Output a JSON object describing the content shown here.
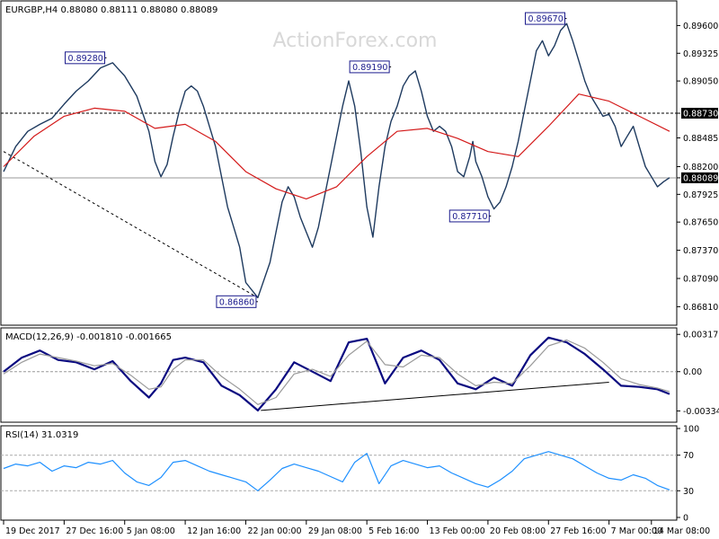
{
  "chart_data": [
    {
      "type": "line",
      "panel": "price",
      "title": "EURGBP,H4  0.88080 0.88111 0.88080 0.88089",
      "watermark": "ActionForex.com",
      "ylim": [
        0.8668,
        0.898
      ],
      "yticks": [
        "0.89600",
        "0.89325",
        "0.89050",
        "0.88730",
        "0.88485",
        "0.88200",
        "0.88089",
        "0.87925",
        "0.87650",
        "0.87370",
        "0.87090",
        "0.86810"
      ],
      "ytick_values": [
        0.896,
        0.89325,
        0.8905,
        0.8873,
        0.88485,
        0.882,
        0.88089,
        0.87925,
        0.8765,
        0.8737,
        0.8709,
        0.8681
      ],
      "highlighted_ticks": [
        "0.88730",
        "0.88089"
      ],
      "horizontal_lines": [
        {
          "value": 0.8873,
          "style": "dashed"
        },
        {
          "value": 0.88089,
          "style": "solid"
        }
      ],
      "series": [
        {
          "color": "#1e3a5f",
          "x": [
            0,
            4,
            8,
            12,
            16,
            20,
            24,
            28,
            32,
            36,
            40,
            44,
            48,
            50,
            52,
            54,
            56,
            58,
            60,
            62,
            64,
            66,
            68,
            70,
            72,
            74,
            76,
            78,
            80,
            84,
            88,
            90,
            92,
            94,
            96,
            98,
            100,
            102,
            104,
            106,
            108,
            110,
            112,
            114,
            116,
            118,
            120,
            122,
            124,
            126,
            128,
            130,
            132,
            134,
            136,
            138,
            140,
            142,
            144,
            146,
            148,
            150,
            152,
            154,
            155,
            156,
            158,
            160,
            162,
            164,
            166,
            168,
            170,
            172,
            174,
            176,
            178,
            180,
            182,
            184,
            186,
            188,
            190,
            192,
            194,
            196,
            198,
            200,
            202,
            204,
            206,
            208,
            210,
            212,
            214,
            216,
            218,
            220
          ],
          "values": [
            0.8815,
            0.884,
            0.8855,
            0.8862,
            0.8868,
            0.8882,
            0.8895,
            0.8905,
            0.8918,
            0.8923,
            0.891,
            0.889,
            0.8855,
            0.8825,
            0.881,
            0.8822,
            0.885,
            0.8875,
            0.8895,
            0.89,
            0.8895,
            0.888,
            0.886,
            0.884,
            0.881,
            0.878,
            0.876,
            0.874,
            0.8705,
            0.869,
            0.8725,
            0.8755,
            0.8785,
            0.88,
            0.879,
            0.877,
            0.8755,
            0.874,
            0.876,
            0.879,
            0.882,
            0.885,
            0.888,
            0.8905,
            0.888,
            0.8835,
            0.878,
            0.875,
            0.88,
            0.884,
            0.8865,
            0.888,
            0.89,
            0.891,
            0.8915,
            0.8895,
            0.887,
            0.8855,
            0.886,
            0.8855,
            0.884,
            0.8815,
            0.881,
            0.883,
            0.8845,
            0.8825,
            0.881,
            0.879,
            0.8778,
            0.8785,
            0.88,
            0.882,
            0.8845,
            0.8875,
            0.8905,
            0.8935,
            0.8945,
            0.893,
            0.894,
            0.8955,
            0.8962,
            0.8945,
            0.8925,
            0.8905,
            0.889,
            0.888,
            0.887,
            0.8872,
            0.886,
            0.884,
            0.885,
            0.886,
            0.884,
            0.882,
            0.881,
            0.88,
            0.8805,
            0.8809
          ]
        },
        {
          "color": "#d41a1a",
          "x": [
            0,
            10,
            20,
            30,
            40,
            50,
            60,
            70,
            80,
            90,
            100,
            110,
            120,
            130,
            140,
            150,
            160,
            170,
            180,
            190,
            200,
            210,
            220
          ],
          "values": [
            0.882,
            0.885,
            0.887,
            0.8878,
            0.8875,
            0.8858,
            0.8862,
            0.8845,
            0.8815,
            0.8798,
            0.8788,
            0.88,
            0.883,
            0.8855,
            0.8858,
            0.8848,
            0.8835,
            0.883,
            0.886,
            0.8892,
            0.8885,
            0.887,
            0.8855
          ]
        }
      ],
      "annotations": [
        {
          "text": "0.89280",
          "x": 34,
          "value": 0.8928
        },
        {
          "text": "0.86860",
          "x": 84,
          "value": 0.8686
        },
        {
          "text": "0.89190",
          "x": 128,
          "value": 0.8919
        },
        {
          "text": "0.87710",
          "x": 161,
          "value": 0.8771
        },
        {
          "text": "0.89670",
          "x": 186,
          "value": 0.8967
        }
      ],
      "trendline": {
        "style": "dashed",
        "from": {
          "x": 0,
          "value": 0.8835
        },
        "to": {
          "x": 84,
          "value": 0.869
        }
      }
    },
    {
      "type": "line",
      "panel": "macd",
      "title": "MACD(12,26,9) -0.001810 -0.001665",
      "ylim": [
        -0.004,
        0.0035
      ],
      "yticks": [
        "0.003177",
        "0.00",
        "-0.003344"
      ],
      "ytick_values": [
        0.003177,
        0.0,
        -0.003344
      ],
      "zero_line": "dashed",
      "series": [
        {
          "color": "#0a0a80",
          "x": [
            0,
            6,
            12,
            18,
            24,
            30,
            36,
            42,
            48,
            52,
            56,
            60,
            66,
            72,
            78,
            84,
            90,
            96,
            102,
            108,
            114,
            120,
            126,
            132,
            138,
            144,
            150,
            156,
            162,
            168,
            174,
            180,
            186,
            192,
            198,
            204,
            210,
            216,
            220
          ],
          "values": [
            0.0,
            0.0012,
            0.0018,
            0.001,
            0.0008,
            0.0002,
            0.0009,
            -0.0008,
            -0.0022,
            -0.001,
            0.001,
            0.0012,
            0.0008,
            -0.0012,
            -0.002,
            -0.0033,
            -0.0015,
            0.0008,
            0.0,
            -0.0008,
            0.0025,
            0.0028,
            -0.001,
            0.0012,
            0.0018,
            0.001,
            -0.001,
            -0.0015,
            -0.0005,
            -0.0012,
            0.0014,
            0.0029,
            0.0025,
            0.0015,
            0.0002,
            -0.0012,
            -0.0013,
            -0.0015,
            -0.0019
          ]
        },
        {
          "color": "#9a9a9a",
          "x": [
            0,
            6,
            12,
            18,
            24,
            30,
            36,
            42,
            48,
            52,
            56,
            60,
            66,
            72,
            78,
            84,
            90,
            96,
            102,
            108,
            114,
            120,
            126,
            132,
            138,
            144,
            150,
            156,
            162,
            168,
            174,
            180,
            186,
            192,
            198,
            204,
            210,
            216,
            220
          ],
          "values": [
            -0.0002,
            0.0008,
            0.0015,
            0.0012,
            0.0009,
            0.0005,
            0.0007,
            -0.0003,
            -0.0015,
            -0.0013,
            0.0002,
            0.001,
            0.001,
            -0.0004,
            -0.0015,
            -0.0028,
            -0.0022,
            -0.0002,
            0.0002,
            -0.0004,
            0.0014,
            0.0026,
            0.0006,
            0.0004,
            0.0014,
            0.0012,
            -0.0002,
            -0.0012,
            -0.0009,
            -0.001,
            0.0005,
            0.0022,
            0.0027,
            0.002,
            0.0008,
            -0.0006,
            -0.0011,
            -0.0014,
            -0.0017
          ]
        }
      ],
      "trendline": {
        "style": "solid",
        "from": {
          "x": 85,
          "value": -0.0033
        },
        "to": {
          "x": 200,
          "value": -0.0009
        }
      }
    },
    {
      "type": "line",
      "panel": "rsi",
      "title": "RSI(14) 31.0319",
      "ylim": [
        0,
        100
      ],
      "yticks": [
        "100",
        "70",
        "30",
        "0"
      ],
      "ytick_values": [
        100,
        70,
        30,
        0
      ],
      "levels": [
        70,
        30
      ],
      "series": [
        {
          "color": "#1e90ff",
          "x": [
            0,
            4,
            8,
            12,
            16,
            20,
            24,
            28,
            32,
            36,
            40,
            44,
            48,
            52,
            56,
            60,
            64,
            68,
            72,
            76,
            80,
            84,
            88,
            92,
            96,
            100,
            104,
            108,
            112,
            116,
            120,
            124,
            128,
            132,
            136,
            140,
            144,
            148,
            152,
            156,
            160,
            164,
            168,
            172,
            176,
            180,
            184,
            188,
            192,
            196,
            200,
            204,
            208,
            212,
            216,
            220
          ],
          "values": [
            55,
            60,
            58,
            62,
            52,
            58,
            56,
            62,
            60,
            64,
            50,
            40,
            36,
            45,
            62,
            64,
            58,
            52,
            48,
            44,
            40,
            30,
            42,
            55,
            60,
            56,
            52,
            46,
            40,
            62,
            72,
            38,
            58,
            64,
            60,
            56,
            58,
            50,
            44,
            38,
            34,
            42,
            52,
            66,
            70,
            74,
            70,
            66,
            58,
            50,
            44,
            42,
            48,
            44,
            36,
            31
          ]
        }
      ]
    }
  ],
  "x_axis": {
    "tick_labels": [
      "19 Dec 2017",
      "27 Dec 16:00",
      "5 Jan 08:00",
      "12 Jan 16:00",
      "22 Jan 00:00",
      "29 Jan 08:00",
      "5 Feb 16:00",
      "13 Feb 00:00",
      "20 Feb 08:00",
      "27 Feb 16:00",
      "7 Mar 00:00",
      "14 Mar 08:00"
    ],
    "tick_x": [
      0,
      20,
      40,
      60,
      80,
      100,
      120,
      140,
      160,
      180,
      200,
      214
    ],
    "range": [
      0,
      220
    ]
  }
}
